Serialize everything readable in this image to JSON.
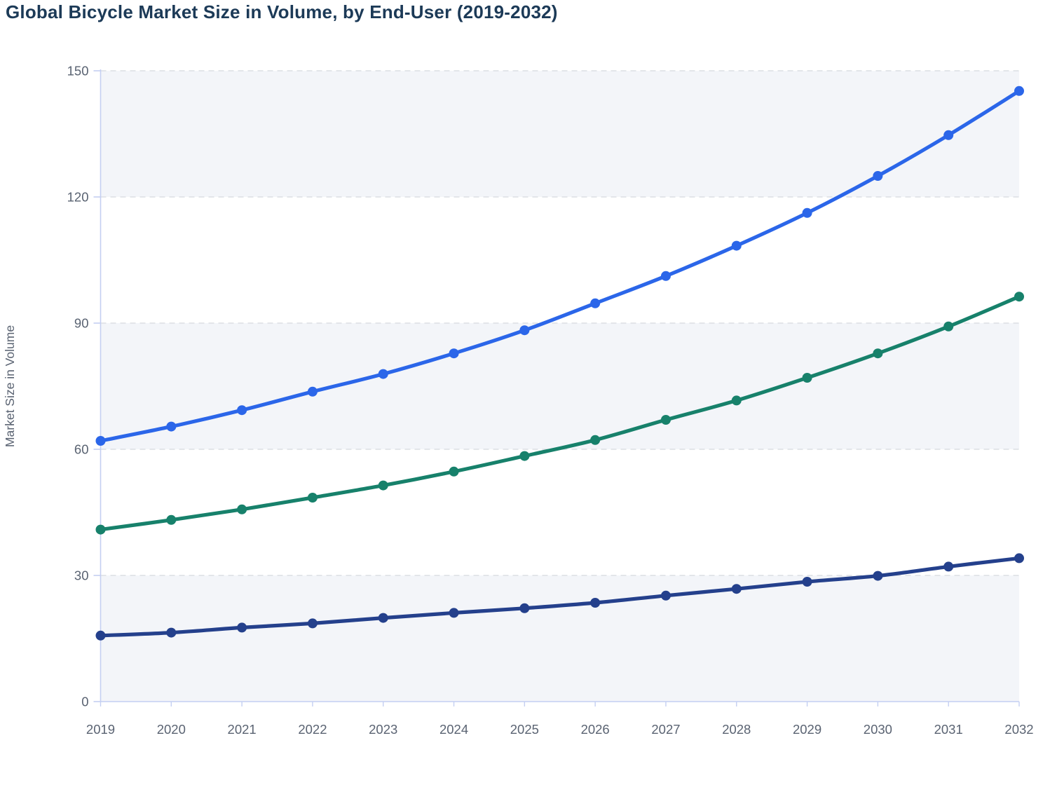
{
  "title": "Global Bicycle Market Size in Volume, by End-User (2019-2032)",
  "styles": {
    "background": "#ffffff",
    "title_color": "#1c3a57",
    "tick_label_color": "#5a6372",
    "axis_line_color": "#c4cff2",
    "gridline_color": "#dcdfe4",
    "band_fill": "#f3f5f9"
  },
  "chart_data": {
    "type": "line",
    "title": "Global Bicycle Market Size in Volume, by End-User (2019-2032)",
    "xlabel": "",
    "ylabel": "Market Size in Volume",
    "x": [
      2019,
      2020,
      2021,
      2022,
      2023,
      2024,
      2025,
      2026,
      2027,
      2028,
      2029,
      2030,
      2031,
      2032
    ],
    "ylim": [
      0,
      150
    ],
    "yticks": [
      0,
      30,
      60,
      90,
      120,
      150
    ],
    "grid": "horizontal-dashed",
    "background_bands": "alternating 30-unit horizontal bands shaded, starting with 0-30",
    "legend_position": "none-visible",
    "point_markers": true,
    "series": [
      {
        "name": "series-blue",
        "color": "#2b66e9",
        "values": [
          62.0,
          65.4,
          69.3,
          73.7,
          77.9,
          82.8,
          88.3,
          94.7,
          101.2,
          108.4,
          116.2,
          125.0,
          134.7,
          145.2
        ]
      },
      {
        "name": "series-green",
        "color": "#17816b",
        "values": [
          40.9,
          43.2,
          45.7,
          48.5,
          51.4,
          54.7,
          58.4,
          62.2,
          67.0,
          71.6,
          77.0,
          82.8,
          89.2,
          96.3
        ]
      },
      {
        "name": "series-navy",
        "color": "#24408c",
        "values": [
          15.7,
          16.4,
          17.6,
          18.6,
          19.9,
          21.1,
          22.2,
          23.5,
          25.2,
          26.8,
          28.5,
          29.9,
          32.1,
          34.1
        ]
      }
    ]
  }
}
